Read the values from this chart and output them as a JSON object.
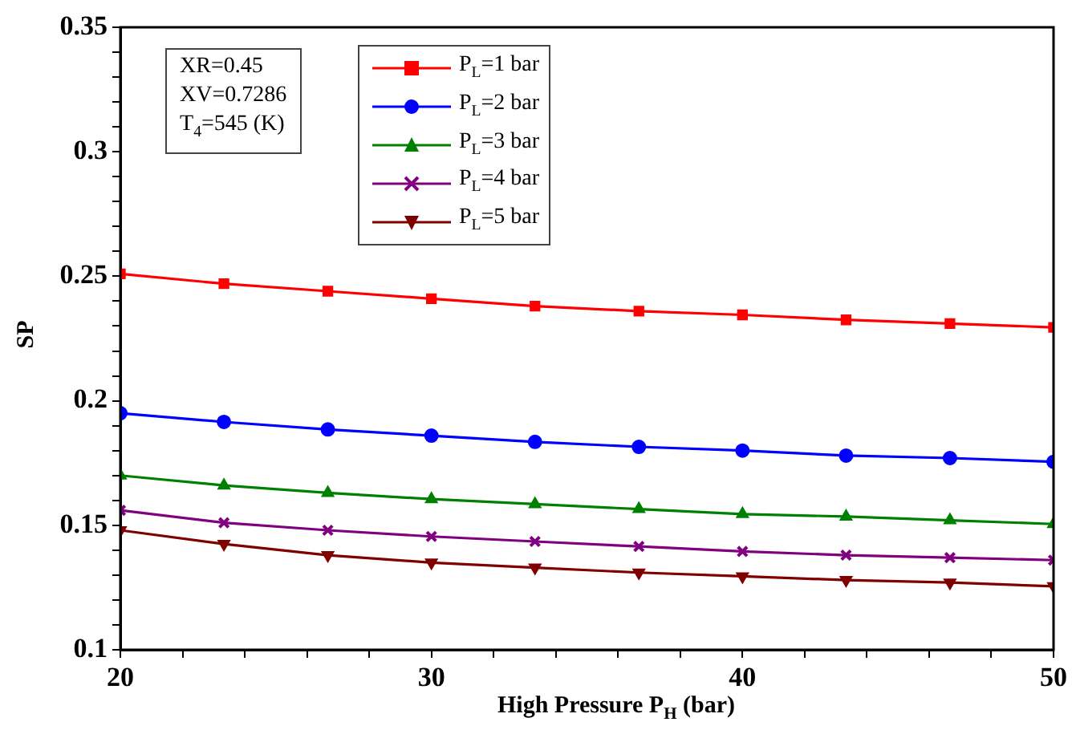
{
  "chart_data": {
    "type": "line",
    "xlabel": "High Pressure P$_{H}$ (bar)",
    "ylabel": "SP",
    "x": [
      20,
      23.33,
      26.67,
      30,
      33.33,
      36.67,
      40,
      43.33,
      46.67,
      50
    ],
    "series": [
      {
        "name": "P$_{L}$=1 bar",
        "color": "#ff0000",
        "marker": "square",
        "values": [
          0.251,
          0.247,
          0.244,
          0.241,
          0.238,
          0.236,
          0.2345,
          0.2325,
          0.231,
          0.2295
        ]
      },
      {
        "name": "P$_{L}$=2 bar",
        "color": "#0000ff",
        "marker": "circle",
        "values": [
          0.195,
          0.1915,
          0.1885,
          0.186,
          0.1835,
          0.1815,
          0.18,
          0.178,
          0.177,
          0.1755
        ]
      },
      {
        "name": "P$_{L}$=3 bar",
        "color": "#008000",
        "marker": "triangle",
        "values": [
          0.17,
          0.166,
          0.163,
          0.1605,
          0.1585,
          0.1565,
          0.1545,
          0.1535,
          0.152,
          0.1505
        ]
      },
      {
        "name": "P$_{L}$=4 bar",
        "color": "#800080",
        "marker": "cross",
        "values": [
          0.156,
          0.151,
          0.148,
          0.1455,
          0.1435,
          0.1415,
          0.1395,
          0.138,
          0.137,
          0.136
        ]
      },
      {
        "name": "P$_{L}$=5 bar",
        "color": "#800000",
        "marker": "triangle-down",
        "values": [
          0.148,
          0.1425,
          0.138,
          0.135,
          0.133,
          0.131,
          0.1295,
          0.128,
          0.127,
          0.1255
        ]
      }
    ],
    "xlim": [
      20,
      50
    ],
    "xticks": [
      20,
      {
        "value": 22,
        "label": null
      },
      {
        "value": 24,
        "label": null
      },
      {
        "value": 26,
        "label": null
      },
      {
        "value": 28,
        "label": null
      },
      30,
      {
        "value": 32,
        "label": null
      },
      {
        "value": 34,
        "label": null
      },
      {
        "value": 36,
        "label": null
      },
      {
        "value": 38,
        "label": null
      },
      40,
      {
        "value": 42,
        "label": null
      },
      {
        "value": 44,
        "label": null
      },
      {
        "value": 46,
        "label": null
      },
      {
        "value": 48,
        "label": null
      },
      50
    ],
    "ylim": [
      0.1,
      0.35
    ],
    "yticks": [
      {
        "value": 0.1,
        "label": "0.1"
      },
      {
        "value": 0.11,
        "label": null
      },
      {
        "value": 0.12,
        "label": null
      },
      {
        "value": 0.13,
        "label": null
      },
      {
        "value": 0.14,
        "label": null
      },
      0.15,
      {
        "value": 0.16,
        "label": null
      },
      {
        "value": 0.17,
        "label": null
      },
      {
        "value": 0.18,
        "label": null
      },
      {
        "value": 0.19,
        "label": null
      },
      {
        "value": 0.2,
        "label": "0.2"
      },
      {
        "value": 0.21,
        "label": null
      },
      {
        "value": 0.22,
        "label": null
      },
      {
        "value": 0.23,
        "label": null
      },
      {
        "value": 0.24,
        "label": null
      },
      0.25,
      {
        "value": 0.26,
        "label": null
      },
      {
        "value": 0.27,
        "label": null
      },
      {
        "value": 0.28,
        "label": null
      },
      {
        "value": 0.29,
        "label": null
      },
      {
        "value": 0.3,
        "label": "0.3"
      },
      {
        "value": 0.31,
        "label": null
      },
      {
        "value": 0.32,
        "label": null
      },
      {
        "value": 0.33,
        "label": null
      },
      {
        "value": 0.34,
        "label": null
      },
      0.35
    ],
    "annotations": [
      "XR=0.45",
      "XV=0.7286",
      "T$_{4}$=545 (K)"
    ],
    "legend": "top",
    "grid": false,
    "line_style": "solid"
  }
}
